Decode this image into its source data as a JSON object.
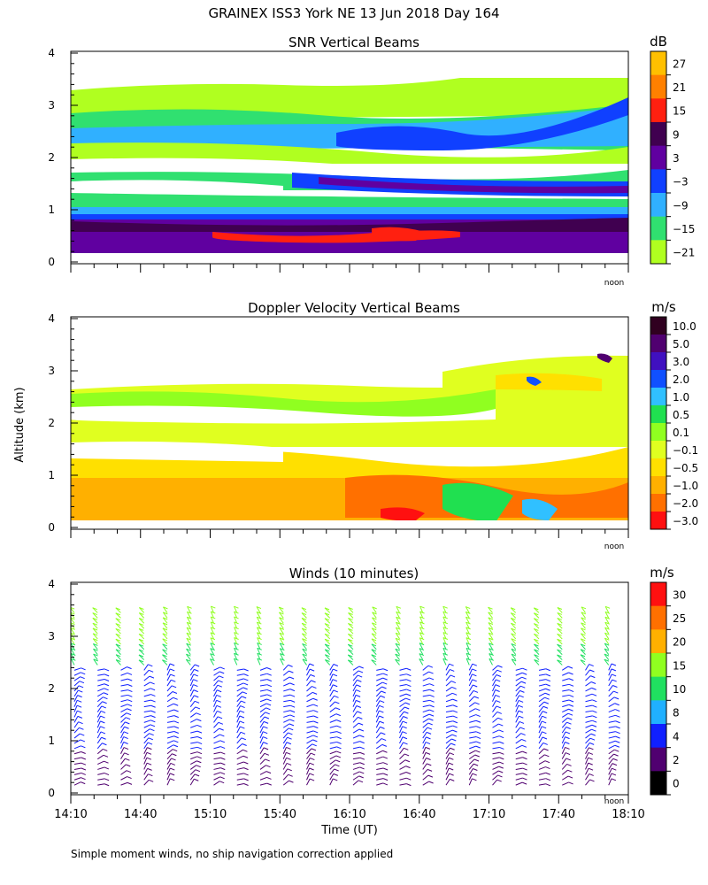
{
  "title": "GRAINEX ISS3 York NE  13 Jun 2018 Day 164",
  "footnote": "Simple moment winds, no ship navigation correction applied",
  "shared": {
    "ylabel": "Altitude (km)",
    "xlabel": "Time (UT)",
    "yticks": [
      "0",
      "1",
      "2",
      "3",
      "4"
    ],
    "xticks": [
      "14:10",
      "14:40",
      "15:10",
      "15:40",
      "16:10",
      "16:40",
      "17:10",
      "17:40",
      "18:10"
    ],
    "noon_label": "noon"
  },
  "panels": [
    {
      "title": "SNR Vertical Beams",
      "unit": "dB",
      "scale_labels": [
        "27",
        "21",
        "15",
        "9",
        "3",
        "−3",
        "−9",
        "−15",
        "−21"
      ],
      "scale_colors": [
        "#ffc000",
        "#ff8000",
        "#ff2010",
        "#400050",
        "#6000a0",
        "#1040ff",
        "#30b0ff",
        "#30e070",
        "#b0ff20"
      ]
    },
    {
      "title": "Doppler Velocity Vertical Beams",
      "unit": "m/s",
      "scale_labels": [
        "10.0",
        "5.0",
        "3.0",
        "2.0",
        "1.0",
        "0.5",
        "0.1",
        "−0.1",
        "−0.5",
        "−1.0",
        "−2.0",
        "−3.0"
      ],
      "scale_colors": [
        "#300020",
        "#500070",
        "#4010c0",
        "#1050ff",
        "#30c0ff",
        "#20e050",
        "#90ff20",
        "#e0ff20",
        "#ffe000",
        "#ffb000",
        "#ff7000",
        "#ff1010"
      ]
    },
    {
      "title": "Winds (10 minutes)",
      "unit": "m/s",
      "scale_labels": [
        "30",
        "25",
        "20",
        "15",
        "10",
        "8",
        "4",
        "2",
        "0"
      ],
      "scale_colors": [
        "#ff1010",
        "#ff7000",
        "#ffb000",
        "#90ff20",
        "#20e060",
        "#20b0ff",
        "#1020ff",
        "#500070",
        "#000000"
      ]
    }
  ],
  "chart_data": [
    {
      "type": "heatmap",
      "title": "SNR Vertical Beams",
      "xlabel": "",
      "ylabel": "Altitude (km)",
      "x_range": [
        "14:10",
        "18:10"
      ],
      "ylim": [
        0,
        4
      ],
      "unit": "dB",
      "layers": [
        {
          "alt_km": [
            0.1,
            0.5
          ],
          "snr_db": 9
        },
        {
          "alt_km": [
            0.5,
            0.8
          ],
          "snr_db": 6
        },
        {
          "alt_km": [
            0.8,
            1.0
          ],
          "snr_db": -3
        },
        {
          "alt_km": [
            1.0,
            1.4
          ],
          "snr_db": -12
        },
        {
          "alt_km": [
            1.4,
            2.8
          ],
          "snr_db": -15
        },
        {
          "alt_km": [
            2.8,
            3.3
          ],
          "snr_db": -21
        }
      ]
    },
    {
      "type": "heatmap",
      "title": "Doppler Velocity Vertical Beams",
      "xlabel": "",
      "ylabel": "Altitude (km)",
      "x_range": [
        "14:10",
        "18:10"
      ],
      "ylim": [
        0,
        4
      ],
      "unit": "m/s",
      "layers": [
        {
          "alt_km": [
            0.1,
            1.2
          ],
          "velocity_ms": -0.5
        },
        {
          "alt_km": [
            1.2,
            2.5
          ],
          "velocity_ms": -0.1
        },
        {
          "alt_km": [
            2.5,
            3.2
          ],
          "velocity_ms": 0.1
        }
      ]
    },
    {
      "type": "scatter",
      "title": "Winds (10 minutes)",
      "xlabel": "Time (UT)",
      "ylabel": "Altitude (km)",
      "x_range": [
        "14:10",
        "18:10"
      ],
      "ylim": [
        0,
        4
      ],
      "unit": "m/s",
      "times": [
        "14:10",
        "14:20",
        "14:30",
        "14:40",
        "14:50",
        "15:00",
        "15:10",
        "15:20",
        "15:30",
        "15:40",
        "15:50",
        "16:00",
        "16:10",
        "16:20",
        "16:30",
        "16:40",
        "16:50",
        "17:00",
        "17:10",
        "17:20",
        "17:30",
        "17:40",
        "17:50",
        "18:00",
        "18:10"
      ],
      "wind_profile": [
        {
          "alt_km": 0.2,
          "speed_ms": 3
        },
        {
          "alt_km": 0.6,
          "speed_ms": 3
        },
        {
          "alt_km": 1.0,
          "speed_ms": 4
        },
        {
          "alt_km": 1.4,
          "speed_ms": 4
        },
        {
          "alt_km": 1.8,
          "speed_ms": 6
        },
        {
          "alt_km": 2.2,
          "speed_ms": 4
        },
        {
          "alt_km": 2.6,
          "speed_ms": 12
        },
        {
          "alt_km": 3.0,
          "speed_ms": 15
        },
        {
          "alt_km": 3.4,
          "speed_ms": 17
        }
      ]
    }
  ]
}
